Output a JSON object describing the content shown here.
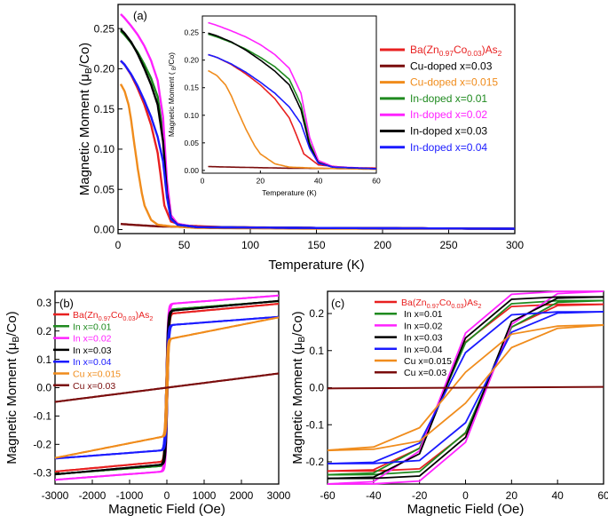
{
  "chart_data": [
    {
      "id": "a",
      "type": "line",
      "panel_label": "(a)",
      "xlabel": "Temperature (K)",
      "ylabel": "Magnetic Moment (μB/Co)",
      "xlim": [
        0,
        300
      ],
      "ylim": [
        -0.005,
        0.28
      ],
      "xticks": [
        0,
        50,
        100,
        150,
        200,
        250,
        300
      ],
      "yticks": [
        0.0,
        0.05,
        0.1,
        0.15,
        0.2,
        0.25
      ],
      "legend": "right",
      "series": [
        {
          "name": "Ba(Zn0.97Co0.03)As2",
          "color": "#e82020",
          "x": [
            2,
            5,
            10,
            15,
            20,
            25,
            30,
            32,
            35,
            40,
            50,
            80,
            150,
            300
          ],
          "y": [
            0.21,
            0.205,
            0.192,
            0.175,
            0.155,
            0.13,
            0.095,
            0.07,
            0.03,
            0.01,
            0.005,
            0.003,
            0.002,
            0.001
          ]
        },
        {
          "name": "Cu-doped x=0.03",
          "color": "#7a0c0c",
          "x": [
            2,
            10,
            20,
            30,
            60,
            150,
            300
          ],
          "y": [
            0.007,
            0.006,
            0.005,
            0.004,
            0.003,
            0.002,
            0.001
          ]
        },
        {
          "name": "Cu-doped x=0.015",
          "color": "#f08c1c",
          "x": [
            2,
            5,
            8,
            10,
            12,
            15,
            18,
            20,
            25,
            30,
            40,
            60,
            150,
            300
          ],
          "y": [
            0.181,
            0.172,
            0.155,
            0.135,
            0.11,
            0.075,
            0.045,
            0.03,
            0.012,
            0.006,
            0.004,
            0.002,
            0.001,
            0.001
          ]
        },
        {
          "name": "In-doped x=0.01",
          "color": "#1f8a1f",
          "x": [
            2,
            5,
            10,
            15,
            20,
            25,
            30,
            34,
            37,
            40,
            45,
            60,
            150,
            300
          ],
          "y": [
            0.247,
            0.242,
            0.232,
            0.22,
            0.205,
            0.188,
            0.165,
            0.12,
            0.05,
            0.015,
            0.006,
            0.003,
            0.002,
            0.001
          ]
        },
        {
          "name": "In-doped x=0.02",
          "color": "#ff22ff",
          "x": [
            2,
            5,
            10,
            15,
            20,
            25,
            30,
            34,
            37,
            40,
            45,
            60,
            150,
            300
          ],
          "y": [
            0.268,
            0.263,
            0.253,
            0.242,
            0.228,
            0.21,
            0.185,
            0.14,
            0.06,
            0.018,
            0.007,
            0.003,
            0.002,
            0.001
          ]
        },
        {
          "name": "In-doped x=0.03",
          "color": "#000000",
          "x": [
            2,
            5,
            10,
            15,
            20,
            25,
            30,
            34,
            37,
            40,
            45,
            60,
            150,
            300
          ],
          "y": [
            0.249,
            0.244,
            0.233,
            0.218,
            0.2,
            0.18,
            0.155,
            0.11,
            0.045,
            0.014,
            0.006,
            0.003,
            0.002,
            0.001
          ]
        },
        {
          "name": "In-doped x=0.04",
          "color": "#1a1aff",
          "x": [
            2,
            5,
            10,
            15,
            20,
            25,
            30,
            34,
            37,
            40,
            45,
            60,
            150,
            300
          ],
          "y": [
            0.21,
            0.205,
            0.193,
            0.178,
            0.16,
            0.14,
            0.115,
            0.085,
            0.04,
            0.013,
            0.006,
            0.003,
            0.002,
            0.001
          ]
        }
      ]
    },
    {
      "id": "a-inset",
      "type": "line",
      "xlabel": "Temperature (K)",
      "ylabel": "Magnetic Moment ( B/Co)",
      "xlim": [
        0,
        60
      ],
      "ylim": [
        -0.005,
        0.28
      ],
      "xticks": [
        0,
        20,
        40,
        60
      ],
      "yticks": [
        0.0,
        0.05,
        0.1,
        0.15,
        0.2,
        0.25
      ],
      "series_from": "a"
    },
    {
      "id": "b",
      "type": "line",
      "panel_label": "(b)",
      "xlabel": "Magnetic Field (Oe)",
      "ylabel": "Magnetic Moment (μB/Co)",
      "xlim": [
        -3000,
        3000
      ],
      "ylim": [
        -0.34,
        0.34
      ],
      "xticks": [
        -3000,
        -2000,
        -1000,
        0,
        1000,
        2000,
        3000
      ],
      "yticks": [
        -0.3,
        -0.2,
        -0.1,
        0.0,
        0.1,
        0.2,
        0.3
      ],
      "legend": "top-left",
      "series": [
        {
          "name": "Ba(Zn0.97Co0.03)As2",
          "label_color": "#e82020",
          "color": "#e82020",
          "ms": 0.26,
          "slope": 1.2e-05,
          "w": 45
        },
        {
          "name": "In x=0.01",
          "label_color": "#1f8a1f",
          "color": "#1f8a1f",
          "ms": 0.275,
          "slope": 1e-05,
          "w": 45
        },
        {
          "name": "In x=0.02",
          "label_color": "#ff22ff",
          "color": "#ff22ff",
          "ms": 0.295,
          "slope": 1e-05,
          "w": 45
        },
        {
          "name": "In x=0.03",
          "label_color": "#000000",
          "color": "#000000",
          "ms": 0.27,
          "slope": 1.2e-05,
          "w": 45
        },
        {
          "name": "In x=0.04",
          "label_color": "#1a1aff",
          "color": "#1a1aff",
          "ms": 0.22,
          "slope": 1e-05,
          "w": 45
        },
        {
          "name": "Cu x=0.015",
          "label_color": "#f08c1c",
          "color": "#f08c1c",
          "ms": 0.17,
          "slope": 2.6e-05,
          "w": 35
        },
        {
          "name": "Cu x=0.03",
          "label_color": "#7a0c0c",
          "color": "#7a0c0c",
          "ms": 0.0,
          "slope": 1.67e-05,
          "w": 1
        }
      ]
    },
    {
      "id": "c",
      "type": "line",
      "panel_label": "(c)",
      "xlabel": "Magnetic Field (Oe)",
      "ylabel": "Magnetic Moment (μB/Co)",
      "xlim": [
        -60,
        60
      ],
      "ylim": [
        -0.26,
        0.26
      ],
      "xticks": [
        -60,
        -40,
        -20,
        0,
        20,
        40,
        60
      ],
      "yticks": [
        -0.2,
        -0.1,
        0.0,
        0.1,
        0.2
      ],
      "legend": "top-left",
      "series": [
        {
          "name": "Ba(Zn0.97Co0.03)As2",
          "label_color": "#e82020",
          "color": "#e82020",
          "ms": 0.225,
          "hc": 8,
          "w": 13
        },
        {
          "name": "In x=0.01",
          "label_color": "#1f8a1f",
          "color": "#1f8a1f",
          "ms": 0.235,
          "hc": 8,
          "w": 14
        },
        {
          "name": "In x=0.02",
          "label_color": "#ff22ff",
          "color": "#ff22ff",
          "ms": 0.26,
          "hc": 9,
          "w": 14
        },
        {
          "name": "In x=0.03",
          "label_color": "#000000",
          "color": "#000000",
          "ms": 0.245,
          "hc": 8,
          "w": 13
        },
        {
          "name": "In x=0.04",
          "label_color": "#1a1aff",
          "color": "#1a1aff",
          "ms": 0.205,
          "hc": 7,
          "w": 14
        },
        {
          "name": "Cu x=0.015",
          "label_color": "#f08c1c",
          "color": "#f08c1c",
          "ms": 0.17,
          "hc": 5,
          "w": 20
        },
        {
          "name": "Cu x=0.03",
          "label_color": "#7a0c0c",
          "color": "#7a0c0c",
          "ms": 0.0,
          "hc": 0,
          "w": 1
        }
      ]
    }
  ]
}
